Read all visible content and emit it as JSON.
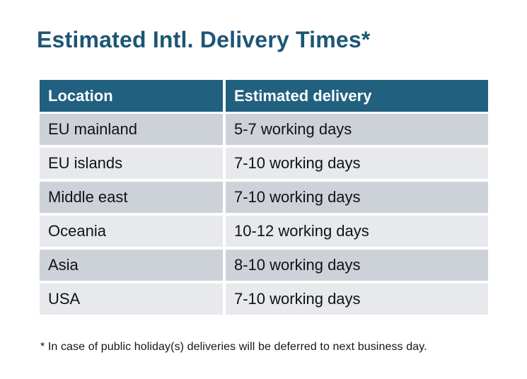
{
  "page": {
    "title": "Estimated Intl. Delivery Times*",
    "footnote": "* In case of public holiday(s) deliveries will be deferred to next business day."
  },
  "table": {
    "columns": [
      "Location",
      "Estimated delivery"
    ],
    "rows": [
      {
        "location": "EU mainland",
        "delivery": "5-7 working days"
      },
      {
        "location": "EU islands",
        "delivery": "7-10 working days"
      },
      {
        "location": "Middle east",
        "delivery": "7-10 working days"
      },
      {
        "location": "Oceania",
        "delivery": "10-12 working days"
      },
      {
        "location": "Asia",
        "delivery": "8-10 working days"
      },
      {
        "location": "USA",
        "delivery": "7-10 working days"
      }
    ]
  },
  "colors": {
    "title_text": "#1d5674",
    "header_bg": "#21607f",
    "header_text": "#ffffff",
    "row_dark_bg": "#cdd1d8",
    "row_light_bg": "#e7e9ec",
    "body_text": "#111214"
  }
}
